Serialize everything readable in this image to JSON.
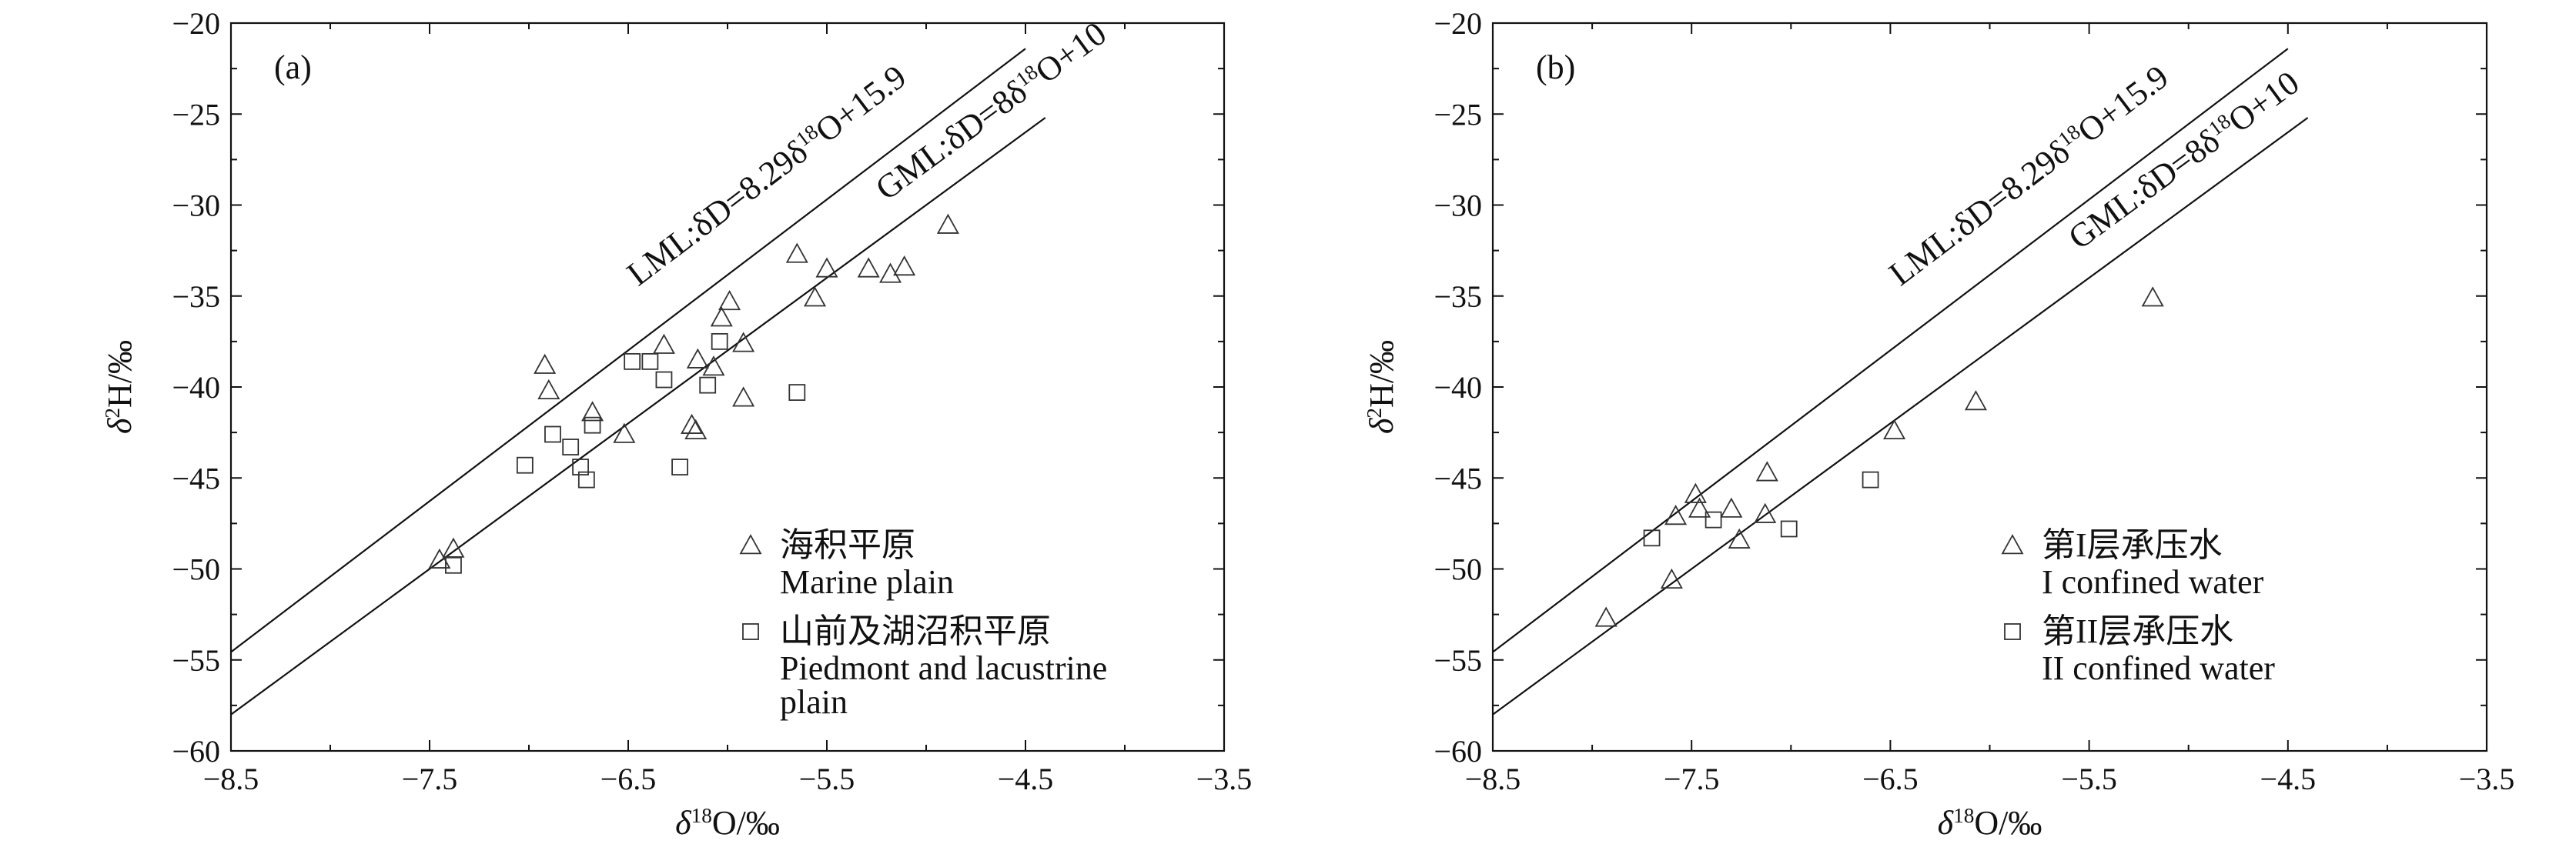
{
  "chart_data": [
    {
      "type": "scatter",
      "panel_label": "(a)",
      "xlabel": "δ¹⁸O/‰",
      "ylabel": "δ²H/‰",
      "xlim": [
        -8.5,
        -3.5
      ],
      "ylim": [
        -60,
        -20
      ],
      "x_ticks": [
        "−8.5",
        "−7.5",
        "−6.5",
        "−5.5",
        "−4.5",
        "−3.5"
      ],
      "x_tick_values": [
        -8.5,
        -7.5,
        -6.5,
        -5.5,
        -4.5,
        -3.5
      ],
      "y_ticks": [
        "−20",
        "−25",
        "−30",
        "−35",
        "−40",
        "−45",
        "−50",
        "−55",
        "−60"
      ],
      "y_tick_values": [
        -20,
        -25,
        -30,
        -35,
        -40,
        -45,
        -50,
        -55,
        -60
      ],
      "lines": [
        {
          "id": "lml",
          "slope": 8.29,
          "intercept": 15.9,
          "x_range": [
            -8.5,
            -4.5
          ],
          "label": "LML:δD=8.29δ¹⁸O+15.9",
          "label_at": [
            -6.45,
            -34.5
          ]
        },
        {
          "id": "gml",
          "slope": 8,
          "intercept": 10,
          "x_range": [
            -8.5,
            -4.4
          ],
          "label": "GML:δD=8δ¹⁸O+10",
          "label_at": [
            -5.2,
            -29.8
          ]
        }
      ],
      "legend": {
        "position": "bottom-right",
        "entries": [
          {
            "marker": "triangle",
            "label_cn": "海积平原",
            "label_en": "Marine plain"
          },
          {
            "marker": "square",
            "label_cn": "山前及湖沼积平原",
            "label_en": "Piedmont and lacustrine plain"
          }
        ]
      },
      "series": [
        {
          "marker": "triangle",
          "points": [
            [
              -7.45,
              -49.5
            ],
            [
              -7.38,
              -48.9
            ],
            [
              -6.92,
              -38.8
            ],
            [
              -6.9,
              -40.2
            ],
            [
              -6.68,
              -41.4
            ],
            [
              -6.52,
              -42.6
            ],
            [
              -6.32,
              -37.7
            ],
            [
              -6.18,
              -42.1
            ],
            [
              -6.16,
              -42.4
            ],
            [
              -6.15,
              -38.5
            ],
            [
              -6.07,
              -38.9
            ],
            [
              -6.03,
              -36.2
            ],
            [
              -5.99,
              -35.3
            ],
            [
              -5.92,
              -37.6
            ],
            [
              -5.92,
              -40.6
            ],
            [
              -5.65,
              -32.7
            ],
            [
              -5.56,
              -35.1
            ],
            [
              -5.5,
              -33.5
            ],
            [
              -5.29,
              -33.5
            ],
            [
              -5.18,
              -33.8
            ],
            [
              -5.11,
              -33.4
            ],
            [
              -4.89,
              -31.1
            ]
          ]
        },
        {
          "marker": "square",
          "points": [
            [
              -7.38,
              -49.8
            ],
            [
              -7.02,
              -44.3
            ],
            [
              -6.88,
              -42.6
            ],
            [
              -6.79,
              -43.3
            ],
            [
              -6.74,
              -44.4
            ],
            [
              -6.71,
              -45.1
            ],
            [
              -6.68,
              -42.1
            ],
            [
              -6.48,
              -38.6
            ],
            [
              -6.39,
              -38.6
            ],
            [
              -6.32,
              -39.6
            ],
            [
              -6.24,
              -44.4
            ],
            [
              -6.1,
              -39.9
            ],
            [
              -6.04,
              -37.5
            ],
            [
              -5.65,
              -40.3
            ]
          ]
        }
      ]
    },
    {
      "type": "scatter",
      "panel_label": "(b)",
      "xlabel": "δ¹⁸O/‰",
      "ylabel": "δ²H/‰",
      "xlim": [
        -8.5,
        -3.5
      ],
      "ylim": [
        -60,
        -20
      ],
      "x_ticks": [
        "−8.5",
        "−7.5",
        "−6.5",
        "−5.5",
        "−4.5",
        "−3.5"
      ],
      "x_tick_values": [
        -8.5,
        -7.5,
        -6.5,
        -5.5,
        -4.5,
        -3.5
      ],
      "y_ticks": [
        "−20",
        "−25",
        "−30",
        "−35",
        "−40",
        "−45",
        "−50",
        "−55",
        "−60"
      ],
      "y_tick_values": [
        -20,
        -25,
        -30,
        -35,
        -40,
        -45,
        -50,
        -55,
        -60
      ],
      "lines": [
        {
          "id": "lml",
          "slope": 8.29,
          "intercept": 15.9,
          "x_range": [
            -8.5,
            -4.5
          ],
          "label": "LML:δD=8.29δ¹⁸O+15.9",
          "label_at": [
            -6.45,
            -34.5
          ]
        },
        {
          "id": "gml",
          "slope": 8,
          "intercept": 10,
          "x_range": [
            -8.5,
            -4.4
          ],
          "label": "GML:δD=8δ¹⁸O+10",
          "label_at": [
            -5.55,
            -32.5
          ]
        }
      ],
      "legend": {
        "position": "bottom-right",
        "entries": [
          {
            "marker": "triangle",
            "label_cn": "第I层承压水",
            "label_en": "I confined water"
          },
          {
            "marker": "square",
            "label_cn": "第II层承压水",
            "label_en": "II confined water"
          }
        ]
      },
      "series": [
        {
          "marker": "triangle",
          "points": [
            [
              -7.93,
              -52.7
            ],
            [
              -7.6,
              -50.6
            ],
            [
              -7.58,
              -47.1
            ],
            [
              -7.48,
              -45.9
            ],
            [
              -7.46,
              -46.7
            ],
            [
              -7.3,
              -46.7
            ],
            [
              -7.26,
              -48.4
            ],
            [
              -7.13,
              -47.0
            ],
            [
              -7.12,
              -44.7
            ],
            [
              -6.48,
              -42.4
            ],
            [
              -6.07,
              -40.8
            ],
            [
              -5.18,
              -35.1
            ]
          ]
        },
        {
          "marker": "square",
          "points": [
            [
              -7.7,
              -48.3
            ],
            [
              -7.39,
              -47.3
            ],
            [
              -7.01,
              -47.8
            ],
            [
              -6.6,
              -45.1
            ]
          ]
        }
      ]
    }
  ]
}
